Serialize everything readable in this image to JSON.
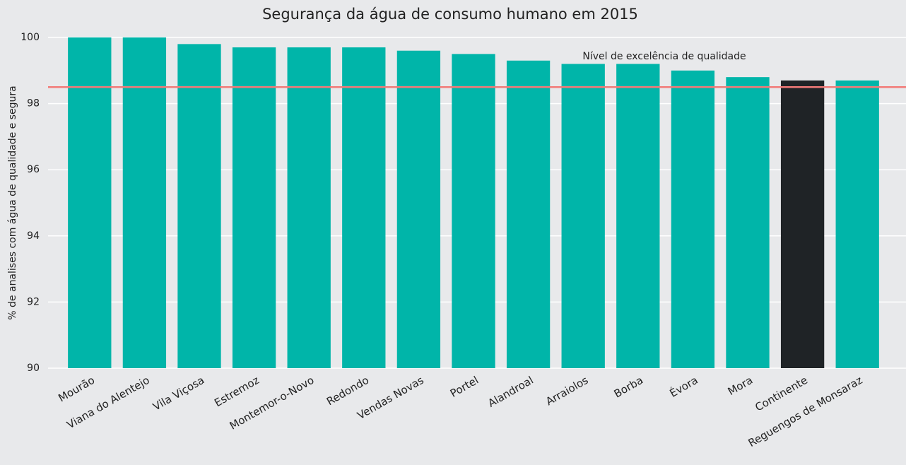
{
  "chart_data": {
    "type": "bar",
    "title": "Segurança da água de consumo humano em 2015",
    "y_label": "% de analises com água de qualidade e segura",
    "categories": [
      "Mourão",
      "Viana do Alentejo",
      "Vila Viçosa",
      "Estremoz",
      "Montemor-o-Novo",
      "Redondo",
      "Vendas Novas",
      "Portel",
      "Alandroal",
      "Arraiolos",
      "Borba",
      "Évora",
      "Mora",
      "Continente",
      "Reguengos de Monsaraz"
    ],
    "values": [
      100,
      100,
      99.8,
      99.7,
      99.7,
      99.7,
      99.6,
      99.5,
      99.3,
      99.2,
      99.2,
      99.0,
      98.8,
      98.7,
      98.7
    ],
    "colors": [
      "#00b5a9",
      "#00b5a9",
      "#00b5a9",
      "#00b5a9",
      "#00b5a9",
      "#00b5a9",
      "#00b5a9",
      "#00b5a9",
      "#00b5a9",
      "#00b5a9",
      "#00b5a9",
      "#00b5a9",
      "#00b5a9",
      "#1f2326",
      "#00b5a9"
    ],
    "ylim": [
      90,
      100
    ],
    "yticks": [
      90,
      92,
      94,
      96,
      98,
      100
    ],
    "grid": true,
    "reference_line": {
      "value": 98.5,
      "label": "Nível de excelência de qualidade",
      "color": "#f27a78"
    }
  }
}
